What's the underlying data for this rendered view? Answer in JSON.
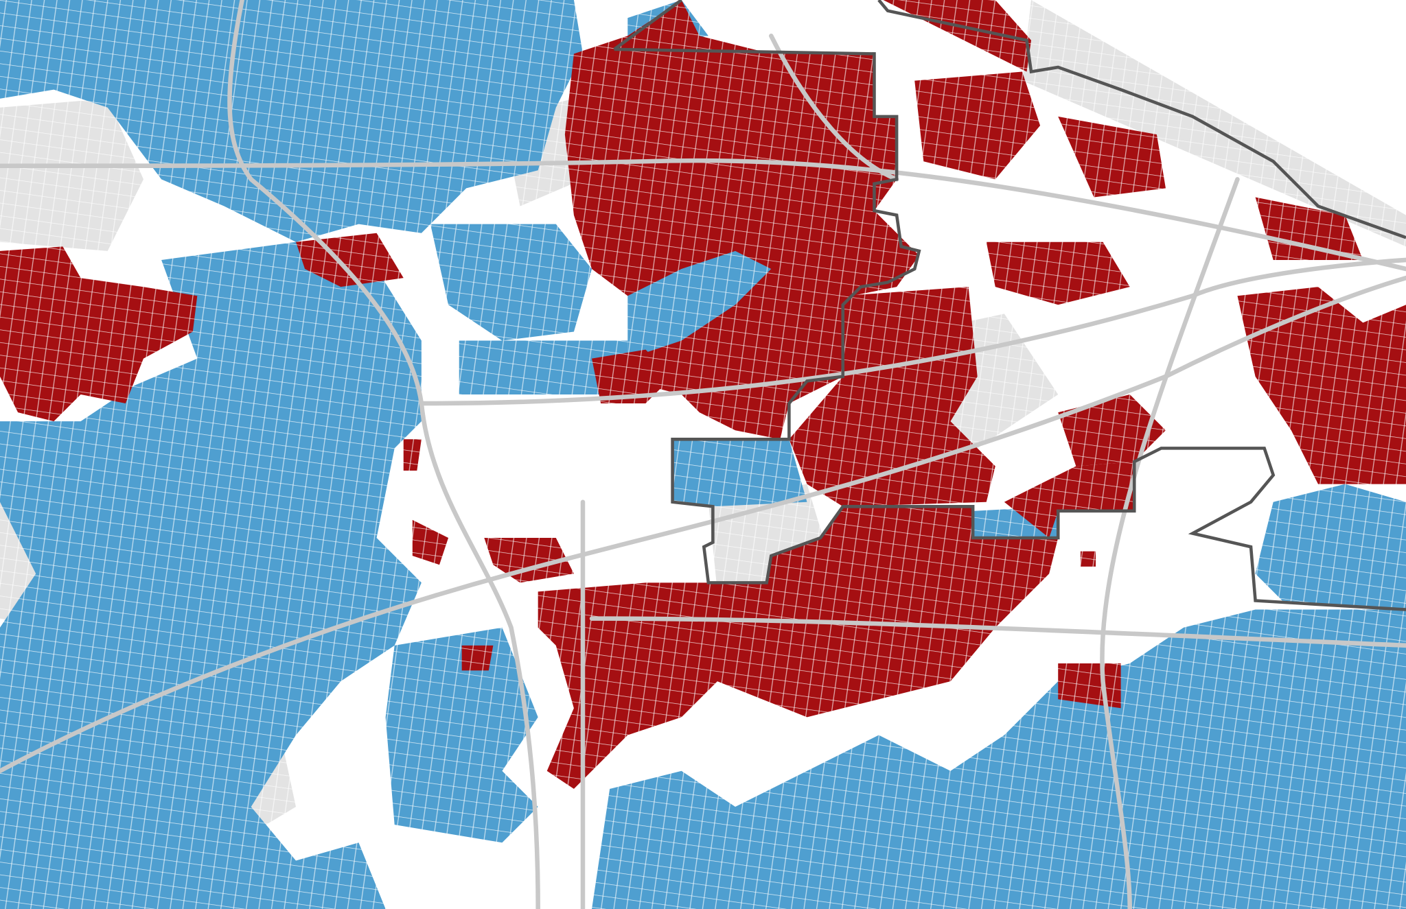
{
  "map": {
    "colors": {
      "blue": "#4f9fd0",
      "red": "#a50f12",
      "gray": "#e3e3e3",
      "road": "#c8c8c8",
      "boundary": "#555555",
      "background": "#ffffff"
    }
  }
}
